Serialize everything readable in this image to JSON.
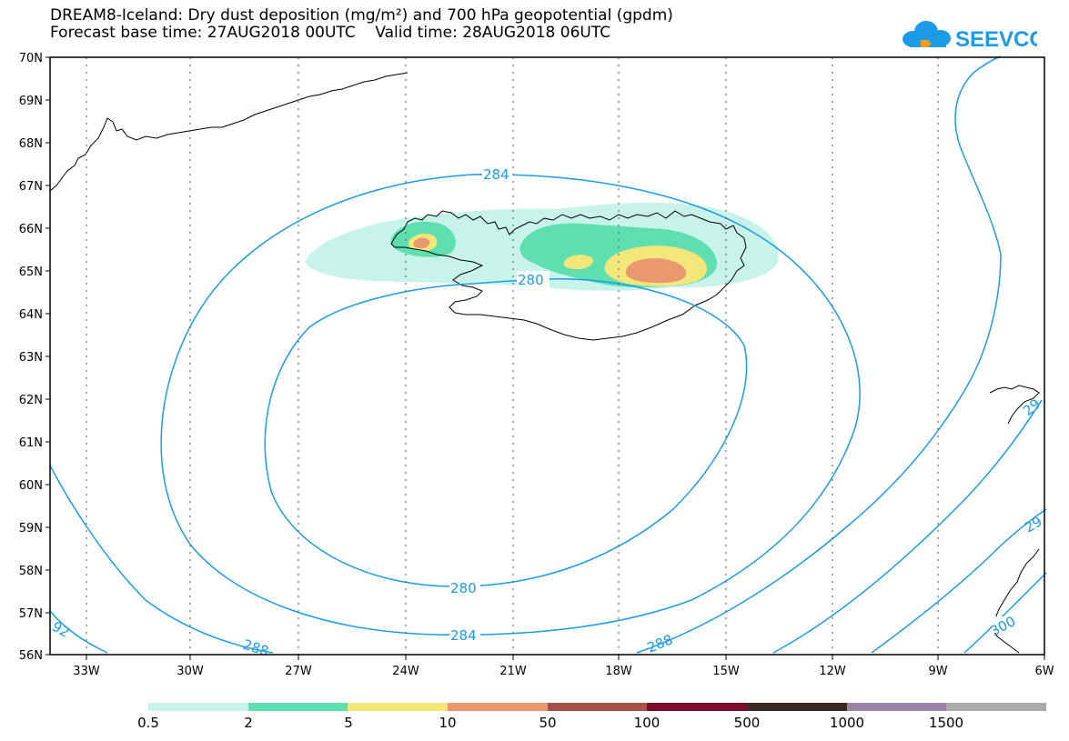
{
  "title": {
    "line1": "DREAM8-Iceland: Dry dust deposition (mg/m²) and 700 hPa geopotential (gpdm)",
    "base_time_label": "Forecast base time: 27AUG2018 00UTC",
    "valid_time_label": "Valid time: 28AUG2018 06UTC"
  },
  "logo": {
    "text": "SEEVCCC",
    "icon": "cloud-icon",
    "color": "#1e9be6"
  },
  "map": {
    "lat_labels": [
      "70N",
      "69N",
      "68N",
      "67N",
      "66N",
      "65N",
      "64N",
      "63N",
      "62N",
      "61N",
      "60N",
      "59N",
      "58N",
      "57N",
      "56N"
    ],
    "lon_labels": [
      "33W",
      "30W",
      "27W",
      "24W",
      "21W",
      "18W",
      "15W",
      "12W",
      "9W",
      "6W"
    ],
    "contour_color": "#1e9be6",
    "contour_labels": [
      "284",
      "280",
      "280",
      "284",
      "288",
      "288",
      "92",
      "29",
      "29",
      "300"
    ]
  },
  "legend": {
    "colors": [
      "#c8f3ea",
      "#5fdfb0",
      "#f4e77a",
      "#ea9870",
      "#a8514a",
      "#7a0d2a",
      "#3a2a1f",
      "#9b82a8",
      "#aaaaaa"
    ],
    "labels": [
      "0.5",
      "2",
      "5",
      "10",
      "50",
      "100",
      "500",
      "1000",
      "1500"
    ]
  }
}
